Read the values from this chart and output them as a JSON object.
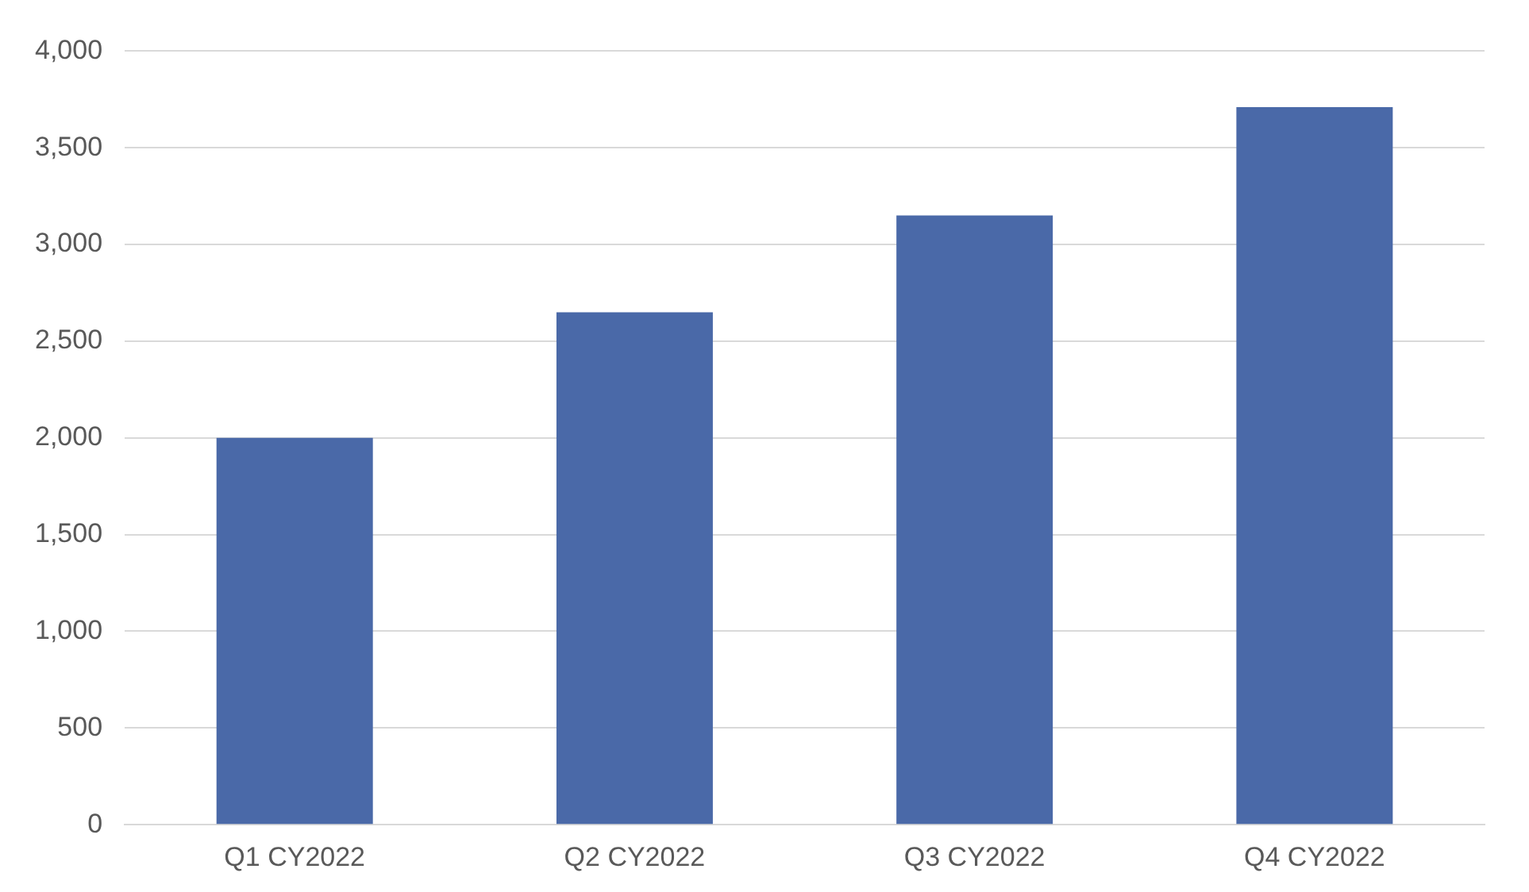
{
  "chart_data": {
    "type": "bar",
    "categories": [
      "Q1 CY2022",
      "Q2 CY2022",
      "Q3 CY2022",
      "Q4 CY2022"
    ],
    "values": [
      2000,
      2650,
      3150,
      3710
    ],
    "color": "#4a69a8",
    "ylim": [
      0,
      4000
    ],
    "yticks": [
      {
        "value": 0,
        "label": "0"
      },
      {
        "value": 500,
        "label": "500"
      },
      {
        "value": 1000,
        "label": "1,000"
      },
      {
        "value": 1500,
        "label": "1,500"
      },
      {
        "value": 2000,
        "label": "2,000"
      },
      {
        "value": 2500,
        "label": "2,500"
      },
      {
        "value": 3000,
        "label": "3,000"
      },
      {
        "value": 3500,
        "label": "3,500"
      },
      {
        "value": 4000,
        "label": "4,000"
      }
    ],
    "grid": "y",
    "legend": false
  }
}
